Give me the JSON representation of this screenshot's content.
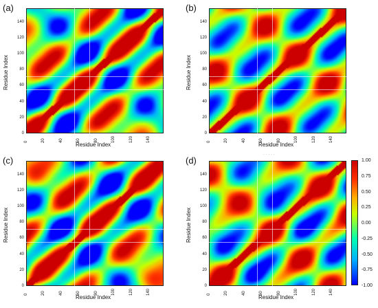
{
  "chart_data": [
    {
      "type": "heatmap",
      "panel_label": "(a)",
      "xlabel": "Residue Index",
      "ylabel": "Residue Index",
      "x_ticks": [
        "0",
        "20",
        "40",
        "60",
        "80",
        "100",
        "120",
        "140"
      ],
      "y_ticks": [
        "0",
        "20",
        "40",
        "60",
        "80",
        "100",
        "120",
        "140"
      ],
      "xlim": [
        0,
        157
      ],
      "ylim": [
        0,
        157
      ],
      "domain_boundaries": [
        55,
        72
      ],
      "vlim": [
        -1.0,
        1.0
      ]
    },
    {
      "type": "heatmap",
      "panel_label": "(b)",
      "xlabel": "Residue Index",
      "ylabel": "Residue Index",
      "x_ticks": [
        "0",
        "20",
        "40",
        "60",
        "80",
        "100",
        "120",
        "140"
      ],
      "y_ticks": [
        "0",
        "20",
        "40",
        "60",
        "80",
        "100",
        "120",
        "140"
      ],
      "xlim": [
        0,
        157
      ],
      "ylim": [
        0,
        157
      ],
      "domain_boundaries": [
        55,
        72
      ],
      "vlim": [
        -1.0,
        1.0
      ]
    },
    {
      "type": "heatmap",
      "panel_label": "(c)",
      "xlabel": "Residue Index",
      "ylabel": "Residue Index",
      "x_ticks": [
        "0",
        "20",
        "40",
        "60",
        "80",
        "100",
        "120",
        "140"
      ],
      "y_ticks": [
        "0",
        "20",
        "40",
        "60",
        "80",
        "100",
        "120",
        "140"
      ],
      "xlim": [
        0,
        157
      ],
      "ylim": [
        0,
        157
      ],
      "domain_boundaries": [
        55,
        72
      ],
      "vlim": [
        -1.0,
        1.0
      ]
    },
    {
      "type": "heatmap",
      "panel_label": "(d)",
      "xlabel": "Residue Index",
      "ylabel": "Residue Index",
      "x_ticks": [
        "0",
        "20",
        "40",
        "60",
        "80",
        "100",
        "120",
        "140"
      ],
      "y_ticks": [
        "0",
        "20",
        "40",
        "60",
        "80",
        "100",
        "120",
        "140"
      ],
      "xlim": [
        0,
        157
      ],
      "ylim": [
        0,
        157
      ],
      "domain_boundaries": [
        55,
        72
      ],
      "vlim": [
        -1.0,
        1.0
      ]
    }
  ],
  "colorbar": {
    "ticks": [
      "1.00",
      "0.75",
      "0.50",
      "0.25",
      "0.00",
      "-0.25",
      "-0.50",
      "-0.75",
      "-1.00"
    ],
    "colormap": [
      "#0000ff",
      "#00b0ff",
      "#00ffb0",
      "#c8ff00",
      "#ffb000",
      "#ff3000",
      "#cc0000"
    ]
  },
  "stray_text": "· · · · ·"
}
